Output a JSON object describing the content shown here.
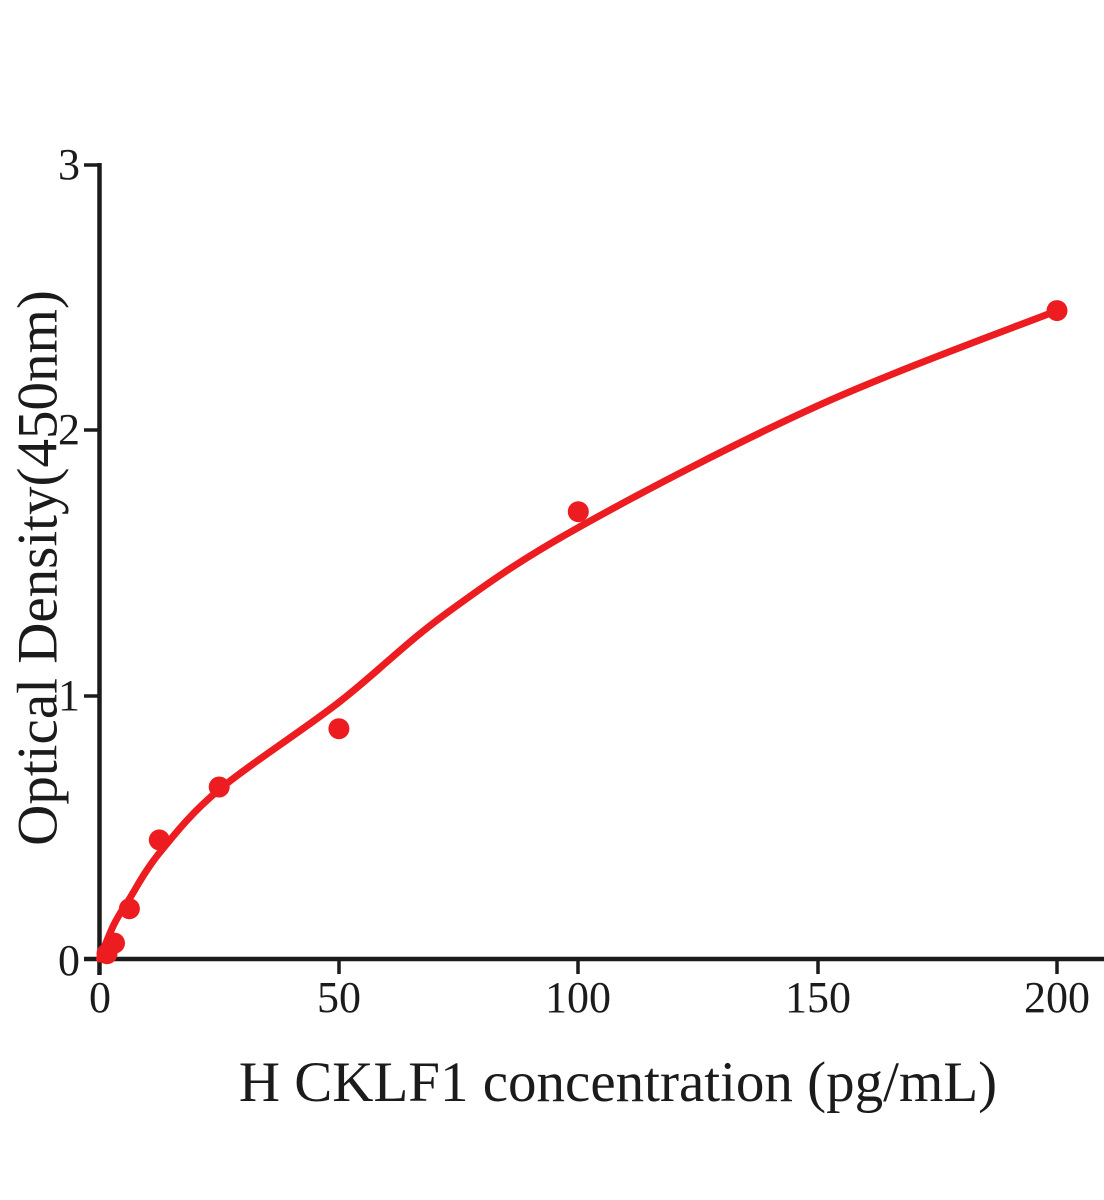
{
  "figure": {
    "background_color": "#ffffff",
    "axis_color": "#1b1b1b",
    "accent_color": "#ec1c21"
  },
  "chart_data": {
    "type": "scatter",
    "title": "",
    "xlabel": "H CKLF1 concentration (pg/mL)",
    "ylabel": "Optical Density(450nm)",
    "xlim": [
      0,
      210
    ],
    "ylim": [
      0,
      3
    ],
    "grid": false,
    "legend": "none",
    "x_ticks": [
      0,
      50,
      100,
      150,
      200
    ],
    "x_tick_labels": [
      "0",
      "50",
      "100",
      "150",
      "200"
    ],
    "y_ticks": [
      0,
      1,
      2,
      3
    ],
    "y_tick_labels": [
      "0",
      "1",
      "2",
      "3"
    ],
    "series": [
      {
        "name": "standard-data-points",
        "type": "scatter",
        "marker": "circle",
        "marker_radius_px": 10.5,
        "color": "#ec1c21",
        "points": [
          [
            1.5625,
            0.02
          ],
          [
            3.125,
            0.06
          ],
          [
            6.25,
            0.19
          ],
          [
            12.5,
            0.45
          ],
          [
            25,
            0.65
          ],
          [
            50,
            0.87
          ],
          [
            100,
            1.69
          ],
          [
            200,
            2.45
          ]
        ]
      },
      {
        "name": "fitted-standard-curve",
        "type": "line",
        "stroke_width_px": 7,
        "color": "#ec1c21",
        "points": [
          [
            0,
            0.0
          ],
          [
            3,
            0.13
          ],
          [
            6,
            0.22
          ],
          [
            12.5,
            0.4
          ],
          [
            25,
            0.64
          ],
          [
            50,
            0.97
          ],
          [
            72,
            1.3
          ],
          [
            100,
            1.63
          ],
          [
            150,
            2.09
          ],
          [
            200,
            2.45
          ]
        ]
      }
    ]
  }
}
